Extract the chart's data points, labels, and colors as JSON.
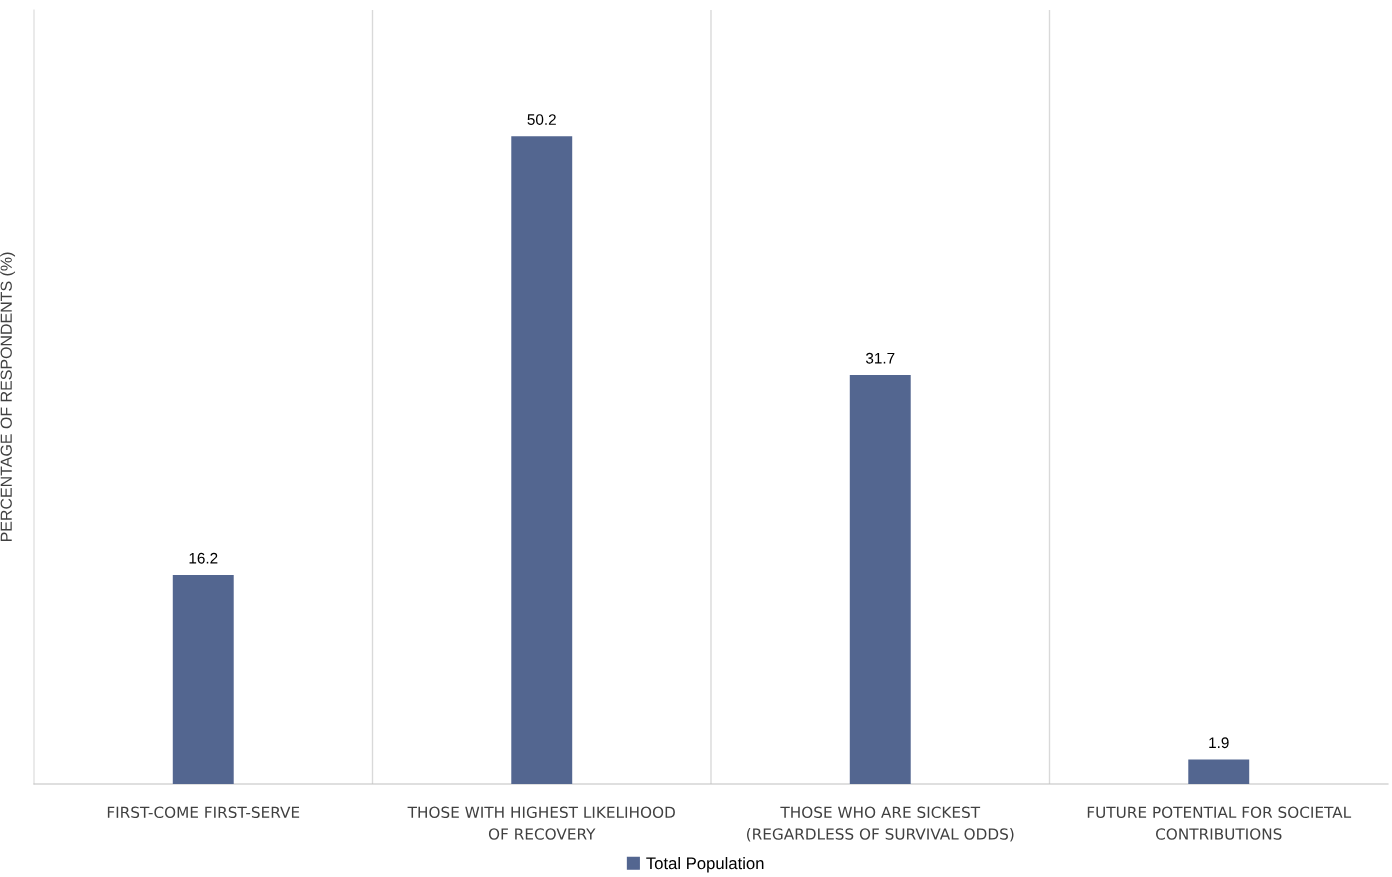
{
  "chart_data": {
    "type": "bar",
    "ylabel": "PERCENTAGE OF RESPONDENTS (%)",
    "categories": [
      "FIRST-COME FIRST-SERVE",
      "THOSE WITH HIGHEST LIKELIHOOD\nOF RECOVERY",
      "THOSE WHO ARE SICKEST\n(REGARDLESS OF SURVIVAL ODDS)",
      "FUTURE POTENTIAL FOR SOCIETAL\nCONTRIBUTIONS"
    ],
    "series": [
      {
        "name": "Total Population",
        "color": "#536690",
        "values": [
          16.2,
          50.2,
          31.7,
          1.9
        ]
      }
    ],
    "data_labels": true,
    "grid": "x",
    "legend": "bottom"
  }
}
